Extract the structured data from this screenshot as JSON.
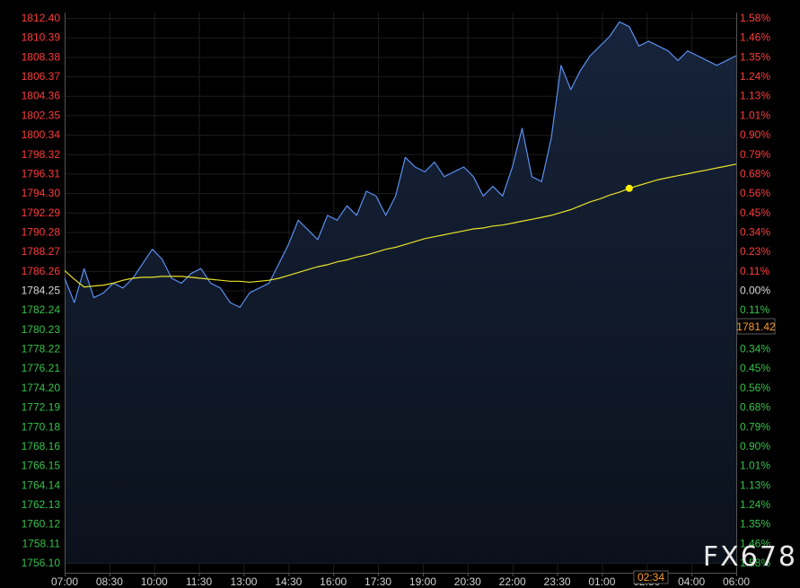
{
  "chart_data": {
    "type": "line",
    "xlabel": "",
    "ylabel": "",
    "ylim": [
      1756.1,
      1812.4
    ],
    "reference_price": 1784.25,
    "current_price": "1781.42",
    "cursor_time": "02:34",
    "y_ticks": [
      "1812.40",
      "1810.39",
      "1808.38",
      "1806.37",
      "1804.36",
      "1802.35",
      "1800.34",
      "1798.32",
      "1796.31",
      "1794.30",
      "1792.29",
      "1790.28",
      "1788.27",
      "1786.26",
      "1784.25",
      "1782.24",
      "1780.23",
      "1778.22",
      "1776.21",
      "1774.20",
      "1772.19",
      "1770.18",
      "1768.16",
      "1766.15",
      "1764.14",
      "1762.13",
      "1760.12",
      "1758.11",
      "1756.10"
    ],
    "pct_ticks": [
      "1.58%",
      "1.46%",
      "1.35%",
      "1.24%",
      "1.13%",
      "1.01%",
      "0.90%",
      "0.79%",
      "0.68%",
      "0.56%",
      "0.45%",
      "0.34%",
      "0.23%",
      "0.11%",
      "0.00%",
      "0.11%",
      "",
      "0.34%",
      "0.45%",
      "0.56%",
      "0.68%",
      "0.79%",
      "0.90%",
      "1.01%",
      "1.13%",
      "1.24%",
      "1.35%",
      "1.46%",
      "1.58%"
    ],
    "x_ticks": [
      "07:00",
      "08:30",
      "10:00",
      "11:30",
      "13:00",
      "14:30",
      "16:00",
      "17:30",
      "19:00",
      "20:30",
      "22:00",
      "23:30",
      "01:00",
      "02:30",
      "04:00",
      "06:00"
    ],
    "series": [
      {
        "values": [
          1785.5,
          1783.0,
          1786.5,
          1783.5,
          1784.0,
          1785.0,
          1784.5,
          1785.5,
          1787.0,
          1788.5,
          1787.5,
          1785.5,
          1785.0,
          1786.0,
          1786.5,
          1785.0,
          1784.5,
          1783.0,
          1782.5,
          1784.0,
          1784.5,
          1785.0,
          1787.0,
          1789.0,
          1791.5,
          1790.5,
          1789.5,
          1792.0,
          1791.5,
          1793.0,
          1792.0,
          1794.5,
          1794.0,
          1792.0,
          1794.0,
          1798.0,
          1797.0,
          1796.5,
          1797.5,
          1796.0,
          1796.5,
          1797.0,
          1796.0,
          1794.0,
          1795.0,
          1794.0,
          1797.0,
          1801.0,
          1796.0,
          1795.5,
          1800.0,
          1807.5,
          1805.0,
          1807.0,
          1808.5,
          1809.5,
          1810.5,
          1812.0,
          1811.5,
          1809.5,
          1810.0,
          1809.5,
          1809.0,
          1808.0,
          1809.0,
          1808.5,
          1808.0,
          1807.5,
          1808.0,
          1808.5
        ]
      },
      {
        "values": [
          1786.3,
          1785.4,
          1784.6,
          1784.7,
          1784.8,
          1785.0,
          1785.3,
          1785.5,
          1785.6,
          1785.6,
          1785.7,
          1785.7,
          1785.7,
          1785.6,
          1785.5,
          1785.4,
          1785.3,
          1785.2,
          1785.2,
          1785.1,
          1785.2,
          1785.3,
          1785.5,
          1785.8,
          1786.1,
          1786.4,
          1786.7,
          1786.9,
          1787.2,
          1787.4,
          1787.7,
          1787.9,
          1788.2,
          1788.5,
          1788.7,
          1789.0,
          1789.3,
          1789.6,
          1789.8,
          1790.0,
          1790.2,
          1790.4,
          1790.6,
          1790.7,
          1790.9,
          1791.0,
          1791.2,
          1791.4,
          1791.6,
          1791.8,
          1792.0,
          1792.3,
          1792.6,
          1793.0,
          1793.4,
          1793.7,
          1794.1,
          1794.4,
          1794.8,
          1795.1,
          1795.4,
          1795.7,
          1795.9,
          1796.1,
          1796.3,
          1796.5,
          1796.7,
          1796.9,
          1797.1,
          1797.3
        ]
      }
    ],
    "markers": [
      {
        "series": 1,
        "index": 58
      }
    ],
    "watermark": "FX678",
    "colors": {
      "price_line": "#5b8ff0",
      "average_line": "#e8e22a",
      "marker": "#ffee00",
      "up_text": "#ff3b3b",
      "down_text": "#35c24a",
      "fill_top": "#16233a",
      "fill_bottom": "#0b111c",
      "current_price_text": "#ff9a2e",
      "grid": "#1d1d1d"
    },
    "grid": true
  }
}
